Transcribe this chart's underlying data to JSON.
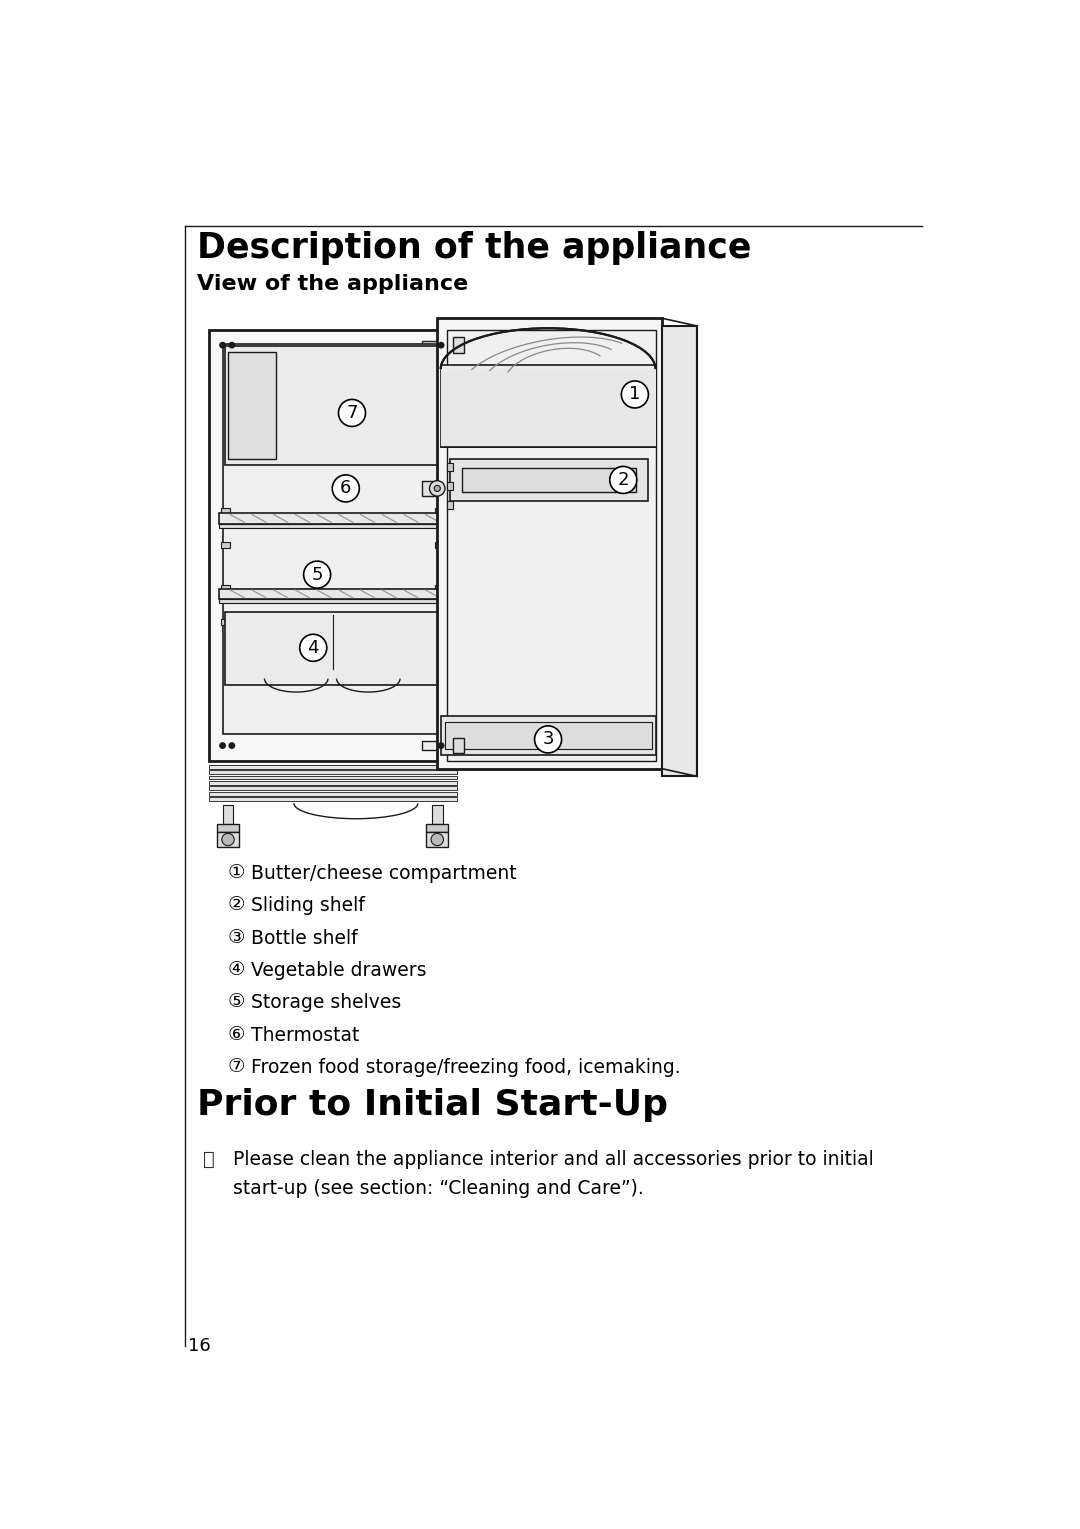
{
  "bg_color": "#ffffff",
  "title1": "Description of the appliance",
  "title2": "View of the appliance",
  "title3": "Prior to Initial Start-Up",
  "legend_items": [
    {
      "num": "①",
      "text": "Butter/cheese compartment"
    },
    {
      "num": "②",
      "text": "Sliding shelf"
    },
    {
      "num": "③",
      "text": "Bottle shelf"
    },
    {
      "num": "④",
      "text": "Vegetable drawers"
    },
    {
      "num": "⑤",
      "text": "Storage shelves"
    },
    {
      "num": "⑥",
      "text": "Thermostat"
    },
    {
      "num": "⑦",
      "text": "Frozen food storage/freezing food, icemaking."
    }
  ],
  "note_text": "Please clean the appliance interior and all accessories prior to initial\nstart-up (see section: “Cleaning and Care”).",
  "page_number": "16",
  "lc": "#1a1a1a",
  "fc": "#ffffff"
}
